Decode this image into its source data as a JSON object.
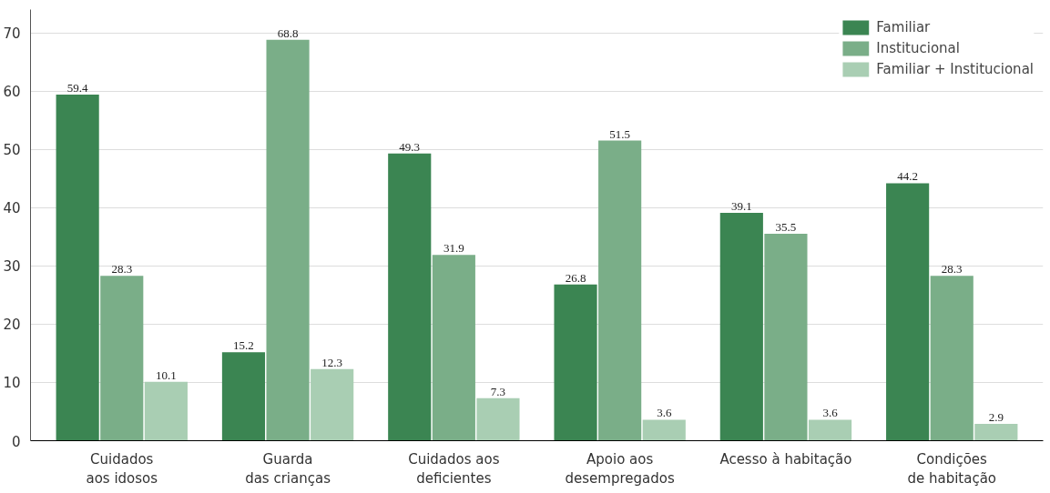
{
  "chart_data": {
    "type": "bar",
    "categories": [
      "Cuidados\naos idosos",
      "Guarda\ndas crianças",
      "Cuidados aos\ndeficientes",
      "Apoio aos\ndesempregados",
      "Acesso à habitação",
      "Condições\nde habitação"
    ],
    "series": [
      {
        "name": "Familiar",
        "color": "#3b8552",
        "values": [
          59.4,
          15.2,
          49.3,
          26.8,
          39.1,
          44.2
        ]
      },
      {
        "name": "Institucional",
        "color": "#7aae88",
        "values": [
          28.3,
          68.8,
          31.9,
          51.5,
          35.5,
          28.3
        ]
      },
      {
        "name": "Familiar + Institucional",
        "color": "#a9ceb3",
        "values": [
          10.1,
          12.3,
          7.3,
          3.6,
          3.6,
          2.9
        ]
      }
    ],
    "ylim": [
      0,
      74
    ],
    "yticks": [
      0,
      10,
      20,
      30,
      40,
      50,
      60,
      70
    ],
    "grid": "y",
    "legend": "top right",
    "data_labels": true
  }
}
